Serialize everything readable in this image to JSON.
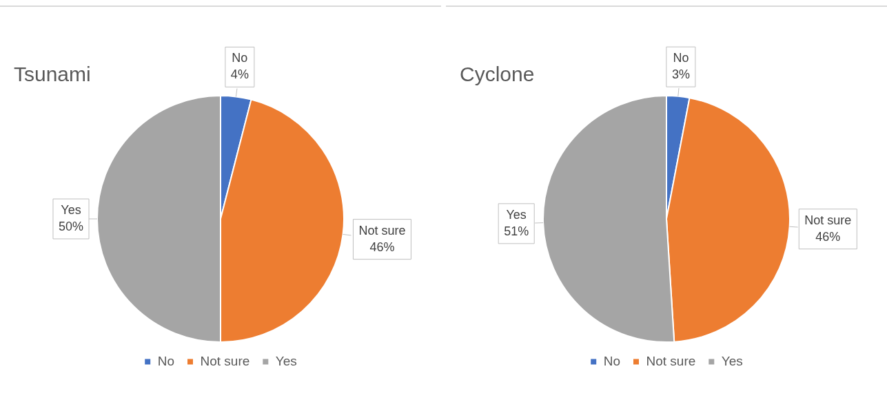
{
  "chart_data": [
    {
      "type": "pie",
      "title": "Tsunami",
      "categories": [
        "No",
        "Not sure",
        "Yes"
      ],
      "values": [
        4,
        46,
        50
      ],
      "value_labels": [
        "4%",
        "46%",
        "50%"
      ],
      "colors": [
        "#4472c4",
        "#ed7d31",
        "#a5a5a5"
      ],
      "legend": "bottom"
    },
    {
      "type": "pie",
      "title": "Cyclone",
      "categories": [
        "No",
        "Not sure",
        "Yes"
      ],
      "values": [
        3,
        46,
        51
      ],
      "value_labels": [
        "3%",
        "46%",
        "51%"
      ],
      "colors": [
        "#4472c4",
        "#ed7d31",
        "#a5a5a5"
      ],
      "legend": "bottom"
    }
  ]
}
